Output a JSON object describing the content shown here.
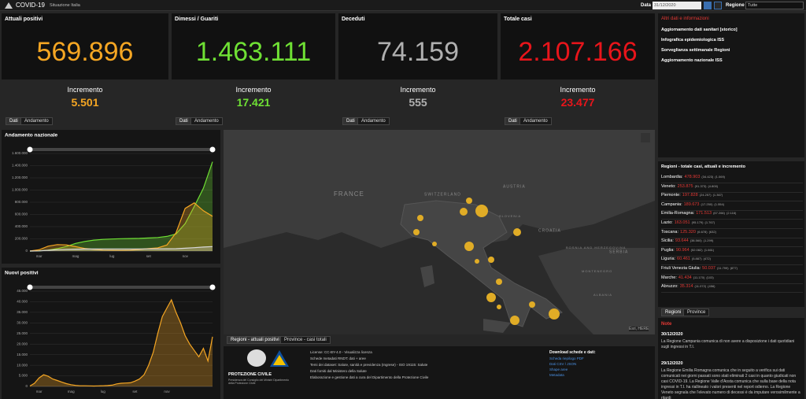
{
  "header": {
    "title": "COVID-19",
    "subtitle": "Situazione Italia",
    "date_label": "Data",
    "date": "31/12/2020",
    "region_label": "Regione",
    "region": "Tutte"
  },
  "kpis": [
    {
      "title": "Attuali positivi",
      "value": "569.896",
      "increment_label": "Incremento",
      "increment": "5.501",
      "color": "#f5a623"
    },
    {
      "title": "Dimessi / Guariti",
      "value": "1.463.111",
      "increment_label": "Incremento",
      "increment": "17.421",
      "color": "#6fe034"
    },
    {
      "title": "Deceduti",
      "value": "74.159",
      "increment_label": "Incremento",
      "increment": "555",
      "color": "#b0b0b0"
    },
    {
      "title": "Totale casi",
      "value": "2.107.166",
      "increment_label": "Incremento",
      "increment": "23.477",
      "color": "#e8151b"
    }
  ],
  "kpi_tabs": [
    "Dati",
    "Andamento"
  ],
  "info": {
    "title": "Altri dati e informazioni",
    "links": [
      "Aggiornamento dati sanitari [storico]",
      "Infografica epidemiologica ISS",
      "Sorveglianza settimanale Regioni",
      "Aggiornamento nazionale ISS"
    ]
  },
  "regions": {
    "title": "Regioni - totale casi, attuali e incremento",
    "rows": [
      {
        "name": "Lombardia:",
        "total": "478.903",
        "current": "(34.423)",
        "increment": "(1.069)"
      },
      {
        "name": "Veneto:",
        "total": "253.875",
        "current": "(91.373)",
        "increment": "(4.800)"
      },
      {
        "name": "Piemonte:",
        "total": "197.828",
        "current": "(24.257)",
        "increment": "(1.367)"
      },
      {
        "name": "Campania:",
        "total": "189.673",
        "current": "(17.250)",
        "increment": "(1.554)"
      },
      {
        "name": "Emilia-Romagna:",
        "total": "171.513",
        "current": "(67.266)",
        "increment": "(2.116)"
      },
      {
        "name": "Lazio:",
        "total": "163.051",
        "current": "(95.179)",
        "increment": "(1.767)"
      },
      {
        "name": "Toscana:",
        "total": "125.320",
        "current": "(6.678)",
        "increment": "(632)"
      },
      {
        "name": "Sicilia:",
        "total": "93.644",
        "current": "(38.560)",
        "increment": "(1.299)"
      },
      {
        "name": "Puglia:",
        "total": "90.964",
        "current": "(52.082)",
        "increment": "(1.661)"
      },
      {
        "name": "Liguria:",
        "total": "60.461",
        "current": "(5.887)",
        "increment": "(472)"
      },
      {
        "name": "Friuli Venezia Giulia:",
        "total": "50.037",
        "current": "(11.799)",
        "increment": "(877)"
      },
      {
        "name": "Marche:",
        "total": "41.434",
        "current": "(11.170)",
        "increment": "(103)"
      },
      {
        "name": "Abruzzo:",
        "total": "35.314",
        "current": "(11.072)",
        "increment": "(456)"
      }
    ],
    "tabs": [
      "Regioni",
      "Province"
    ]
  },
  "map": {
    "labels": [
      "FRANCE",
      "SWITZERLAND",
      "AUSTRIA",
      "SLOVENIA",
      "CROATIA",
      "BOSNIA AND HERZEGOVINA",
      "SERBIA",
      "MONTENEGRO",
      "ALBANIA"
    ],
    "attribution": "Esri, HERE",
    "tabs": [
      "Regioni - attuali positivi",
      "Province - casi totali"
    ]
  },
  "notes": {
    "title": "Note",
    "entries": [
      {
        "date": "30/12/2020",
        "text": "La Regione Campania comunica di non avere a disposizione i dati quotidiani sugli ingressi in T.I."
      },
      {
        "date": "29/12/2020",
        "text": "La Regione Emilia Romagna comunica che in seguito a verifica sui dati comunicati nei giorni passati sono stati eliminati 2 casi in quanto giudicati non casi COVID-19. La Regione Valle d'Aosta comunica che sulla base della nota ingressi in T.I. ha riallineato i valori presenti nel report odierno. La Regione Veneto segnala che l'elevato numero di decessi è da imputare verosimilmente a ritardi"
      }
    ]
  },
  "footer": {
    "logo": "PROTEZIONE CIVILE",
    "logo_sub": "Presidenza del Consiglio dei Ministri Dipartimento della Protezione Civile",
    "lines": [
      "License: CC-BY-4.0 - Visualizza licenza",
      "Schede metadati RNDT: dati + aree",
      "Temi dei dataset: Salute, sanità e previdenza (Ingrese) - ISO 19115: Salute",
      "Dati forniti dal Ministero della Salute",
      "Elaborazione e gestione dati a cura del Dipartimento della Protezione Civile"
    ],
    "download_title": "Download schede e dati:",
    "downloads": [
      "Scheda riepilogo PDF",
      "Dati CSV / JSON",
      "Shape aree",
      "Metadata"
    ]
  },
  "chart_data": [
    {
      "type": "line",
      "title": "Andamento nazionale",
      "area": true,
      "categories": [
        null,
        "mar",
        null,
        null,
        null,
        "mag",
        null,
        null,
        null,
        "lug",
        null,
        null,
        null,
        "set",
        null,
        null,
        null,
        "nov",
        null,
        null,
        null
      ],
      "series": [
        {
          "color": "#6fe034",
          "values": [
            50,
            2000,
            16000,
            40000,
            75000,
            125000,
            157000,
            180000,
            191000,
            198000,
            202000,
            205000,
            208000,
            214000,
            222000,
            240000,
            280000,
            450000,
            730000,
            1030000,
            1463111
          ]
        },
        {
          "color": "#f5a623",
          "values": [
            300,
            20000,
            80000,
            106000,
            101000,
            72000,
            43000,
            27000,
            16000,
            13000,
            12000,
            14000,
            26000,
            40000,
            51000,
            100000,
            300000,
            700000,
            790000,
            660000,
            569896
          ]
        },
        {
          "color": "#d8d8d8",
          "values": [
            10,
            2000,
            13000,
            22000,
            28000,
            31000,
            33000,
            34000,
            35000,
            35000,
            35000,
            35000,
            35000,
            36000,
            36000,
            37000,
            39000,
            46000,
            56000,
            66000,
            74159
          ]
        }
      ],
      "ylim": [
        0,
        1600000
      ],
      "yticks": [
        0,
        {
          "value": 200000,
          "label": "200.000"
        },
        {
          "value": 400000,
          "label": "400.000"
        },
        {
          "value": 600000,
          "label": "600.000"
        },
        {
          "value": 800000,
          "label": "800.000"
        },
        {
          "value": 1000000,
          "label": "1.000.000"
        },
        {
          "value": 1200000,
          "label": "1.200.000"
        },
        {
          "value": 1400000,
          "label": "1.400.000"
        },
        {
          "value": 1600000,
          "label": "1.600.000"
        }
      ],
      "grid": true
    },
    {
      "type": "line",
      "title": "Nuovi positivi",
      "area": true,
      "categories": [
        null,
        null,
        "mar",
        null,
        null,
        null,
        null,
        null,
        null,
        "mag",
        null,
        null,
        null,
        null,
        null,
        null,
        "lug",
        null,
        null,
        null,
        null,
        null,
        null,
        "set",
        null,
        null,
        null,
        null,
        null,
        null,
        "nov",
        null,
        null,
        null,
        null,
        null,
        null,
        null,
        null,
        null,
        null
      ],
      "series": [
        {
          "color": "#f5a623",
          "values": [
            200,
            1500,
            4000,
            5500,
            4800,
            3500,
            2800,
            2000,
            1300,
            800,
            500,
            300,
            300,
            250,
            200,
            250,
            300,
            400,
            600,
            1200,
            1500,
            1600,
            1700,
            2500,
            3500,
            5500,
            10000,
            16000,
            25000,
            33000,
            37000,
            40900,
            35000,
            30000,
            24000,
            20000,
            17000,
            14000,
            18000,
            12000,
            23477
          ]
        }
      ],
      "ylim": [
        0,
        45000
      ],
      "yticks": [
        0,
        {
          "value": 5000,
          "label": "5.000"
        },
        {
          "value": 10000,
          "label": "10.000"
        },
        {
          "value": 15000,
          "label": "15.000"
        },
        {
          "value": 20000,
          "label": "20.000"
        },
        {
          "value": 25000,
          "label": "25.000"
        },
        {
          "value": 30000,
          "label": "30.000"
        },
        {
          "value": 35000,
          "label": "35.000"
        },
        {
          "value": 40000,
          "label": "40.000"
        },
        {
          "value": 45000,
          "label": "45.000"
        }
      ],
      "grid": true
    }
  ]
}
